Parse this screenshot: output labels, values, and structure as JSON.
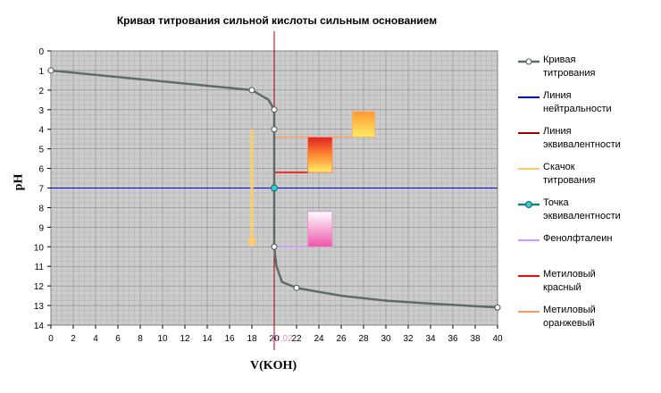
{
  "chart_data": {
    "type": "line",
    "title": "Кривая титрования сильной кислоты сильным основанием",
    "xlabel": "V(KOH)",
    "ylabel": "pH",
    "xlim": [
      0,
      40
    ],
    "ylim": [
      0,
      14
    ],
    "y_inverted": true,
    "grid": true,
    "legend_position": "right",
    "x_ticks": [
      "0",
      "2",
      "4",
      "6",
      "8",
      "10",
      "12",
      "14",
      "16",
      "18",
      "20",
      "22",
      "24",
      "26",
      "28",
      "30",
      "32",
      "34",
      "36",
      "38",
      "40"
    ],
    "y_ticks": [
      "0",
      "1",
      "2",
      "3",
      "4",
      "5",
      "6",
      "7",
      "8",
      "9",
      "10",
      "11",
      "12",
      "13",
      "14"
    ],
    "annotation_x_tick": "20,02",
    "series": [
      {
        "name": "Кривая титрования",
        "color": "#606a6a",
        "points": [
          [
            0,
            1
          ],
          [
            18,
            2
          ],
          [
            19.5,
            2.5
          ],
          [
            20,
            3
          ],
          [
            20,
            4
          ],
          [
            20,
            7
          ],
          [
            20,
            10
          ],
          [
            20.2,
            11
          ],
          [
            20.7,
            11.8
          ],
          [
            22,
            12.1
          ],
          [
            26,
            12.5
          ],
          [
            30,
            12.75
          ],
          [
            34,
            12.9
          ],
          [
            38,
            13.03
          ],
          [
            40,
            13.1
          ]
        ],
        "markers": [
          [
            0,
            1
          ],
          [
            18,
            2
          ],
          [
            20,
            3
          ],
          [
            20,
            4
          ],
          [
            20,
            10
          ],
          [
            22,
            12.1
          ],
          [
            40,
            13.1
          ]
        ]
      },
      {
        "name": "Линия нейтральности",
        "color": "#0000ff",
        "y": 7
      },
      {
        "name": "Линия эквивалентности",
        "color": "#990000",
        "x": 20
      },
      {
        "name": "Скачок титрования",
        "color": "#ffcc66",
        "from": [
          18,
          4
        ],
        "to": [
          18,
          10
        ]
      },
      {
        "name": "Точка эквивалентности",
        "color": "#33cccc",
        "point": [
          20,
          7
        ]
      },
      {
        "name": "Фенолфталеин",
        "color": "#cc99ff",
        "range": [
          8.2,
          10
        ]
      },
      {
        "name": "Метиловый красный",
        "color": "#ff0000",
        "range": [
          4.4,
          6.2
        ]
      },
      {
        "name": "Метиловый оранжевый",
        "color": "#ff9966",
        "range": [
          3.1,
          4.4
        ]
      }
    ]
  },
  "legend": [
    {
      "label": "Кривая\nтитрования",
      "color": "#606a6a",
      "kind": "line-marker"
    },
    {
      "label": "Линия\nнейтральности",
      "color": "#0000aa",
      "kind": "line"
    },
    {
      "label": "Линия\nэквивалентности",
      "color": "#990000",
      "kind": "line"
    },
    {
      "label": "Скачок\nтитрования",
      "color": "#ffcc66",
      "kind": "line"
    },
    {
      "label": "Точка\nэквивалентности",
      "color": "#1f7f7f",
      "kind": "line-marker-cyan"
    },
    {
      "label": "Фенолфталеин",
      "color": "#cc99ff",
      "kind": "line"
    },
    {
      "label": "Метиловый\nкрасный",
      "color": "#ff0000",
      "kind": "line"
    },
    {
      "label": "Метиловый\nоранжевый",
      "color": "#ff9966",
      "kind": "line"
    }
  ]
}
